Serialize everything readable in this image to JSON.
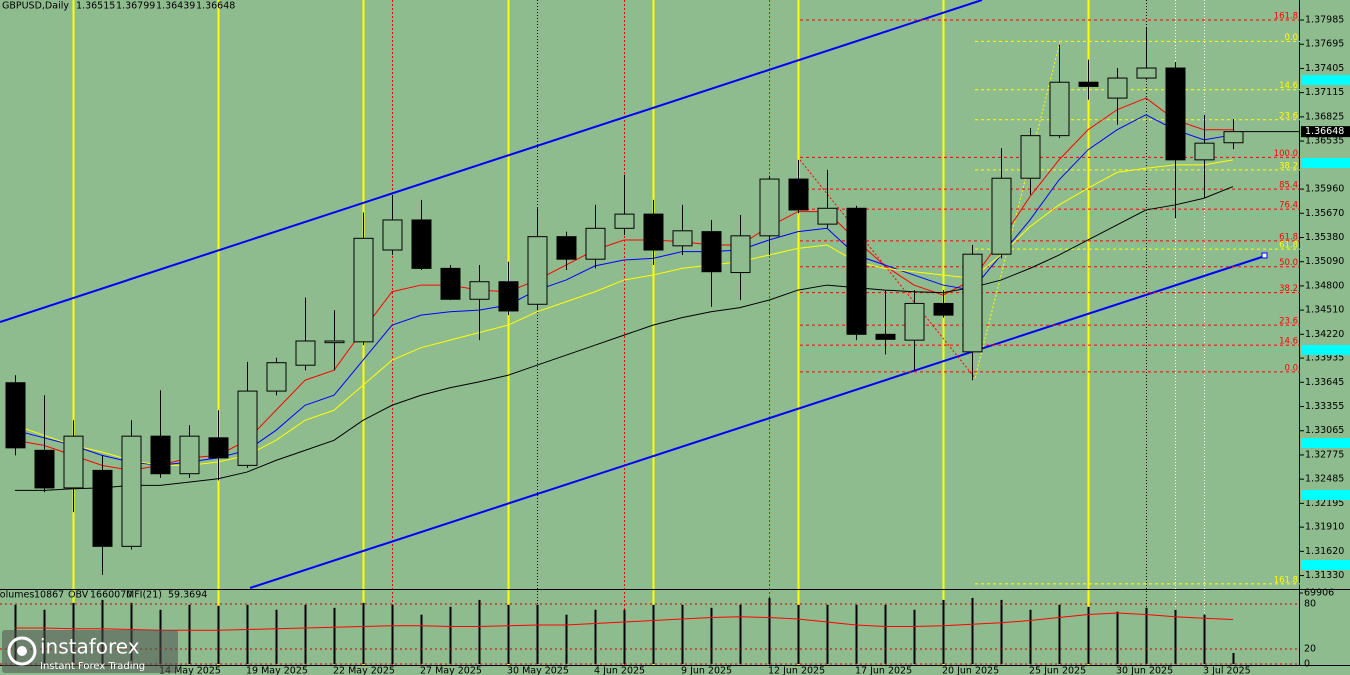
{
  "chart_data": {
    "type": "candlestick",
    "symbol": "GBPUSD,Daily",
    "categories": [
      null,
      null,
      null,
      null,
      null,
      "14 May 2025",
      null,
      null,
      "19 May 2025",
      null,
      null,
      "22 May 2025",
      null,
      null,
      "27 May 2025",
      null,
      null,
      "30 May 2025",
      null,
      null,
      "4 Jun 2025",
      null,
      null,
      "9 Jun 2025",
      null,
      null,
      "12 Jun 2025",
      null,
      null,
      "17 Jun 2025",
      null,
      null,
      "20 Jun 2025",
      null,
      null,
      "25 Jun 2025",
      null,
      null,
      "30 Jun 2025",
      null,
      null,
      "3 Jul 2025",
      null
    ],
    "open": [
      1.3364,
      1.3283,
      1.3238,
      1.3259,
      1.3168,
      1.33,
      1.3255,
      1.3298,
      1.3265,
      1.3354,
      1.3385,
      1.3412,
      1.3413,
      1.3523,
      1.3559,
      1.3501,
      1.3464,
      1.3485,
      1.3458,
      1.3539,
      1.3512,
      1.3549,
      1.3566,
      1.3528,
      1.3545,
      1.3496,
      1.354,
      1.3608,
      1.3554,
      1.3573,
      1.3422,
      1.3415,
      1.3459,
      1.3401,
      1.3518,
      1.3609,
      1.366,
      1.3724,
      1.3705,
      1.3729,
      1.3741,
      1.3631,
      1.36515
    ],
    "high": [
      1.3373,
      1.3349,
      1.3319,
      1.3277,
      1.3319,
      1.3355,
      1.3313,
      1.3331,
      1.3389,
      1.3394,
      1.3466,
      1.3451,
      1.3568,
      1.3589,
      1.3583,
      1.3505,
      1.3505,
      1.3509,
      1.3573,
      1.3545,
      1.3577,
      1.3613,
      1.3583,
      1.3577,
      1.3559,
      1.3565,
      1.3612,
      1.3631,
      1.3619,
      1.3576,
      1.3475,
      1.3475,
      1.3475,
      1.3529,
      1.3645,
      1.3669,
      1.3769,
      1.3751,
      1.3741,
      1.3789,
      1.3748,
      1.3685,
      1.36799
    ],
    "low": [
      1.3277,
      1.3233,
      1.3209,
      1.3134,
      1.3164,
      1.325,
      1.325,
      1.3247,
      1.3262,
      1.3349,
      1.3379,
      1.3379,
      1.3409,
      1.3517,
      1.3499,
      1.3463,
      1.3415,
      1.3445,
      1.3451,
      1.3499,
      1.3501,
      1.3541,
      1.3505,
      1.3517,
      1.3455,
      1.3463,
      1.3517,
      1.3567,
      1.3549,
      1.3415,
      1.3398,
      1.3379,
      1.3442,
      1.3367,
      1.3513,
      1.3589,
      1.3657,
      1.3703,
      1.3673,
      1.3727,
      1.3561,
      1.3585,
      1.36439
    ],
    "close": [
      1.3286,
      1.3238,
      1.33,
      1.3168,
      1.33,
      1.3255,
      1.33,
      1.3274,
      1.3354,
      1.3388,
      1.3414,
      1.3414,
      1.3537,
      1.3559,
      1.3501,
      1.3464,
      1.3485,
      1.345,
      1.3539,
      1.3512,
      1.3549,
      1.3566,
      1.3523,
      1.3546,
      1.3497,
      1.354,
      1.3608,
      1.3571,
      1.3573,
      1.3422,
      1.3416,
      1.3459,
      1.3445,
      1.3518,
      1.3609,
      1.366,
      1.3724,
      1.3719,
      1.3729,
      1.3741,
      1.3631,
      1.3651,
      1.36648
    ],
    "up_color": "#8fbc8f",
    "down_color": "#000000",
    "ma_lines": [
      {
        "color": "#ff0000",
        "values": [
          1.3295,
          1.3289,
          1.3277,
          1.3265,
          1.3259,
          1.3265,
          1.3274,
          1.3277,
          1.3295,
          1.3331,
          1.3367,
          1.3379,
          1.3427,
          1.3473,
          1.3481,
          1.3481,
          1.3475,
          1.3473,
          1.3487,
          1.3505,
          1.3523,
          1.3535,
          1.3535,
          1.3533,
          1.3529,
          1.3529,
          1.3551,
          1.3569,
          1.3569,
          1.3535,
          1.3504,
          1.3481,
          1.3469,
          1.3487,
          1.3535,
          1.3587,
          1.3631,
          1.3667,
          1.3691,
          1.3705,
          1.3679,
          1.3667,
          1.3667
        ]
      },
      {
        "color": "#0000ff",
        "values": [
          1.3307,
          1.3298,
          1.3289,
          1.3277,
          1.3269,
          1.3265,
          1.3269,
          1.3274,
          1.3283,
          1.3307,
          1.3337,
          1.3349,
          1.3391,
          1.3433,
          1.3445,
          1.3449,
          1.3451,
          1.3457,
          1.3475,
          1.3487,
          1.3504,
          1.3511,
          1.3513,
          1.3521,
          1.3521,
          1.3523,
          1.3535,
          1.3545,
          1.3549,
          1.3517,
          1.3505,
          1.3493,
          1.3481,
          1.3475,
          1.3517,
          1.3559,
          1.3607,
          1.3643,
          1.3667,
          1.3685,
          1.3667,
          1.3655,
          1.3661
        ]
      },
      {
        "color": "#ffff00",
        "values": [
          1.3313,
          1.3301,
          1.3289,
          1.3281,
          1.3271,
          1.3265,
          1.3265,
          1.3269,
          1.3277,
          1.3295,
          1.3319,
          1.3331,
          1.3361,
          1.3391,
          1.3406,
          1.3415,
          1.3424,
          1.3433,
          1.3449,
          1.3461,
          1.3473,
          1.3487,
          1.3493,
          1.3501,
          1.3505,
          1.3509,
          1.3517,
          1.3525,
          1.3529,
          1.3509,
          1.3501,
          1.3497,
          1.3493,
          1.3489,
          1.3517,
          1.3551,
          1.3577,
          1.3597,
          1.3616,
          1.3621,
          1.3625,
          1.3625,
          1.3631
        ]
      },
      {
        "color": "#000000",
        "values": [
          1.3235,
          1.3235,
          1.3237,
          1.3238,
          1.3241,
          1.3241,
          1.3245,
          1.3249,
          1.3257,
          1.3271,
          1.3283,
          1.3295,
          1.3319,
          1.3337,
          1.3349,
          1.3358,
          1.3365,
          1.3373,
          1.3385,
          1.3397,
          1.3409,
          1.3421,
          1.3433,
          1.3442,
          1.3449,
          1.3454,
          1.3463,
          1.3475,
          1.3481,
          1.3478,
          1.3475,
          1.3473,
          1.3472,
          1.3478,
          1.3487,
          1.3501,
          1.3517,
          1.3535,
          1.3553,
          1.3571,
          1.3577,
          1.3585,
          1.3599
        ]
      }
    ],
    "ylim": [
      1.31181,
      1.38225
    ],
    "yticks": [
      1.37985,
      1.37695,
      1.37405,
      1.37115,
      1.36825,
      1.36535,
      {
        "value": 1.3596,
        "label": "1.35960"
      },
      {
        "value": 1.3567,
        "label": "1.35670"
      },
      {
        "value": 1.3538,
        "label": "1.35380"
      },
      {
        "value": 1.3509,
        "label": "1.35090"
      },
      {
        "value": 1.348,
        "label": "1.34800"
      },
      {
        "value": 1.3451,
        "label": "1.34510"
      },
      {
        "value": 1.3422,
        "label": "1.34220"
      },
      1.33935,
      1.33645,
      1.33355,
      1.33065,
      1.32775,
      1.32485,
      1.32195,
      {
        "value": 1.3191,
        "label": "1.31910"
      },
      {
        "value": 1.3162,
        "label": "1.31620"
      },
      {
        "value": 1.3133,
        "label": "1.31330"
      }
    ],
    "fib_levels": [
      {
        "label": "161.8",
        "price": 1.37985,
        "color": "#ff0000"
      },
      {
        "label": "100.0",
        "price": 1.3634,
        "color": "#ff0000"
      },
      {
        "label": "85.4",
        "price": 1.3596,
        "color": "#ff0000"
      },
      {
        "label": "76.4",
        "price": 1.3572,
        "color": "#ff0000"
      },
      {
        "label": "61.8",
        "price": 1.3534,
        "color": "#ff0000"
      },
      {
        "label": "50.0",
        "price": 1.3503,
        "color": "#ff0000"
      },
      {
        "label": "38.2",
        "price": 1.3472,
        "color": "#ff0000"
      },
      {
        "label": "23.6",
        "price": 1.3433,
        "color": "#ff0000"
      },
      {
        "label": "14.6",
        "price": 1.3409,
        "color": "#ff0000"
      },
      {
        "label": "0.0",
        "price": 1.3377,
        "color": "#ff0000"
      },
      {
        "label": "0.0",
        "price": 1.3773,
        "color": "#ffff00"
      },
      {
        "label": "14.6",
        "price": 1.3715,
        "color": "#ffff00"
      },
      {
        "label": "23.6",
        "price": 1.3679,
        "color": "#ffff00"
      },
      {
        "label": "38.2",
        "price": 1.3619,
        "color": "#ffff00"
      },
      {
        "label": "61.8",
        "price": 1.3524,
        "color": "#ffff00"
      },
      {
        "label": "161.8",
        "price": 1.3123,
        "color": "#ffff00"
      }
    ],
    "volume_label": "Volumes",
    "obv_label": "OBV",
    "obv_value": 1660070,
    "mfi_label": "MFI(21)",
    "volumes": [
      58250,
      53400,
      60200,
      63110,
      60200,
      53400,
      58250,
      57280,
      58250,
      53400,
      58250,
      55340,
      60200,
      58250,
      48550,
      56310,
      63110,
      58250,
      58250,
      48550,
      53400,
      53400,
      58250,
      58250,
      55340,
      58250,
      65050,
      58250,
      58250,
      58250,
      58250,
      53400,
      63110,
      65050,
      63110,
      53400,
      58250,
      56310,
      51460,
      55340,
      53400,
      48550,
      10867
    ],
    "volume_ylim": [
      0,
      69906
    ],
    "volume_ticks": [
      69906
    ],
    "mfi": [
      48,
      48,
      47,
      47,
      46,
      45,
      45,
      45,
      46,
      47,
      48,
      49,
      50,
      51,
      51,
      50,
      50,
      51,
      52,
      52,
      54,
      56,
      58,
      60,
      62,
      63,
      62,
      60,
      56,
      52,
      50,
      50,
      51,
      53,
      55,
      58,
      62,
      66,
      68,
      66,
      63,
      61,
      59.3694
    ],
    "mfi_color": "#ff0000",
    "mfi_ylim": [
      0,
      94.7
    ],
    "mfi_ticks": [
      80,
      20,
      0
    ]
  },
  "watermark": {
    "brand": "instaforex",
    "tagline": "Instant Forex Trading"
  }
}
